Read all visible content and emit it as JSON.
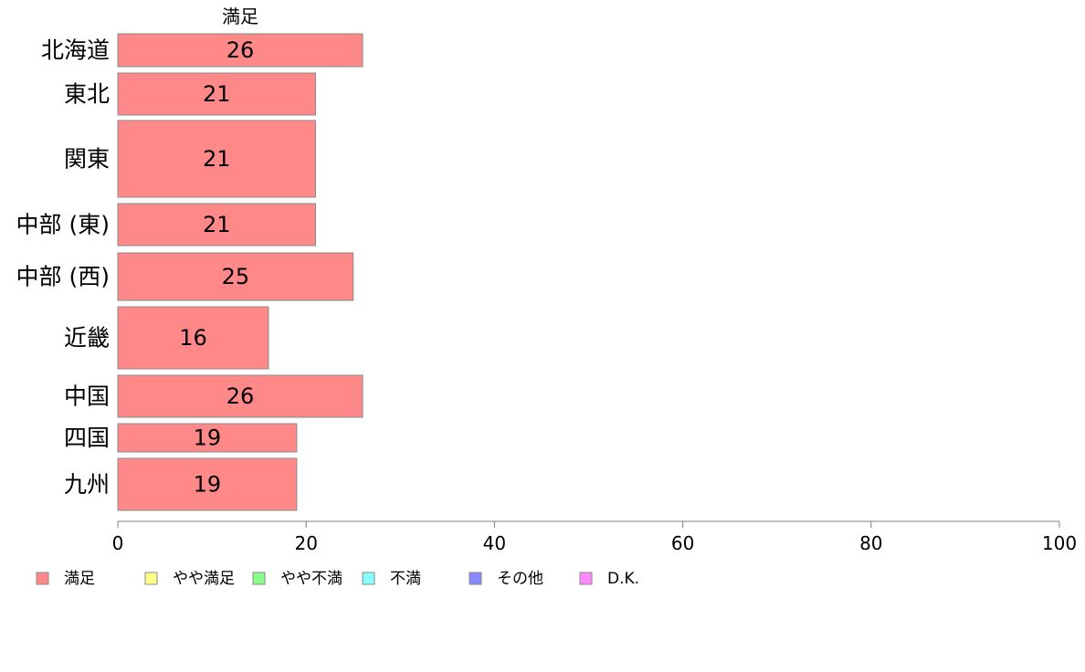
{
  "chart_data": {
    "type": "bar",
    "orientation": "horizontal",
    "stacked": true,
    "column_header": "満足",
    "categories": [
      "北海道",
      "東北",
      "関東",
      "中部 (東)",
      "中部 (西)",
      "近畿",
      "中国",
      "四国",
      "九州"
    ],
    "series": [
      {
        "name": "満足",
        "color": "#ff8888",
        "values": [
          26,
          21,
          21,
          21,
          25,
          16,
          26,
          19,
          19
        ]
      }
    ],
    "legend": [
      {
        "name": "満足",
        "color": "#ff8888"
      },
      {
        "name": "やや満足",
        "color": "#ffff88"
      },
      {
        "name": "やや不満",
        "color": "#88ff88"
      },
      {
        "name": "不満",
        "color": "#88ffff"
      },
      {
        "name": "その他",
        "color": "#8888ff"
      },
      {
        "name": "D.K.",
        "color": "#ff88ff"
      }
    ],
    "legend_position": "bottom",
    "xlim": [
      0,
      100
    ],
    "xticks": [
      0,
      20,
      40,
      60,
      80,
      100
    ],
    "grid": false
  }
}
